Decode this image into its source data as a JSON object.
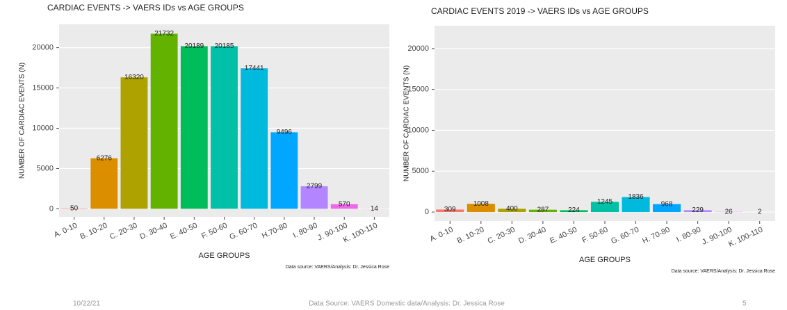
{
  "chart_data": [
    {
      "type": "bar",
      "title": "CARDIAC EVENTS -> VAERS IDs vs AGE GROUPS",
      "ylabel": "NUMBER OF CARDIAC EVENTS (N)",
      "xlabel": "AGE GROUPS",
      "caption": "Data source: VAERS/Analysis: Dr. Jessica Rose",
      "categories": [
        "A. 0-10",
        "B. 10-20",
        "C. 20-30",
        "D. 30-40",
        "E. 40-50",
        "F. 50-60",
        "G. 60-70",
        "H.70-80",
        "I. 80-90",
        "J. 90-100",
        "K. 100-110"
      ],
      "values": [
        50,
        6276,
        16320,
        21732,
        20189,
        20185,
        17441,
        9496,
        2799,
        570,
        14
      ],
      "colors": [
        "#F8766D",
        "#DB8E00",
        "#AEA200",
        "#64B200",
        "#00BD5C",
        "#00C1A7",
        "#00BADE",
        "#00A6FF",
        "#B385FF",
        "#EF67EB",
        "#FF63B6"
      ],
      "ylim": [
        -1000,
        22900
      ],
      "yticks": [
        0,
        5000,
        10000,
        15000,
        20000
      ],
      "grid": true
    },
    {
      "type": "bar",
      "title": "CARDIAC EVENTS 2019 -> VAERS IDs vs AGE GROUPS",
      "ylabel": "NUMBER OF CARDIAC EVENTS (N)",
      "xlabel": "AGE GROUPS",
      "caption": "Data source: VAERS/Analysis: Dr. Jessica Rose",
      "categories": [
        "A. 0-10",
        "B. 10-20",
        "C. 20-30",
        "D. 30-40",
        "E. 40-50",
        "F. 50-60",
        "G. 60-70",
        "H. 70-80",
        "I. 80-90",
        "J. 90-100",
        "K. 100-110"
      ],
      "values": [
        309,
        1008,
        400,
        287,
        224,
        1245,
        1836,
        968,
        229,
        26,
        2
      ],
      "colors": [
        "#F8766D",
        "#DB8E00",
        "#AEA200",
        "#64B200",
        "#00BD5C",
        "#00C1A7",
        "#00BADE",
        "#00A6FF",
        "#B385FF",
        "#EF67EB",
        "#FF63B6"
      ],
      "ylim": [
        -1100,
        22800
      ],
      "yticks": [
        0,
        5000,
        10000,
        15000,
        20000
      ],
      "grid": true
    }
  ],
  "footer": {
    "date": "10/22/21",
    "source": "Data Source: VAERS Domestic data/Analysis: Dr. Jessica Rose",
    "page": "5"
  }
}
